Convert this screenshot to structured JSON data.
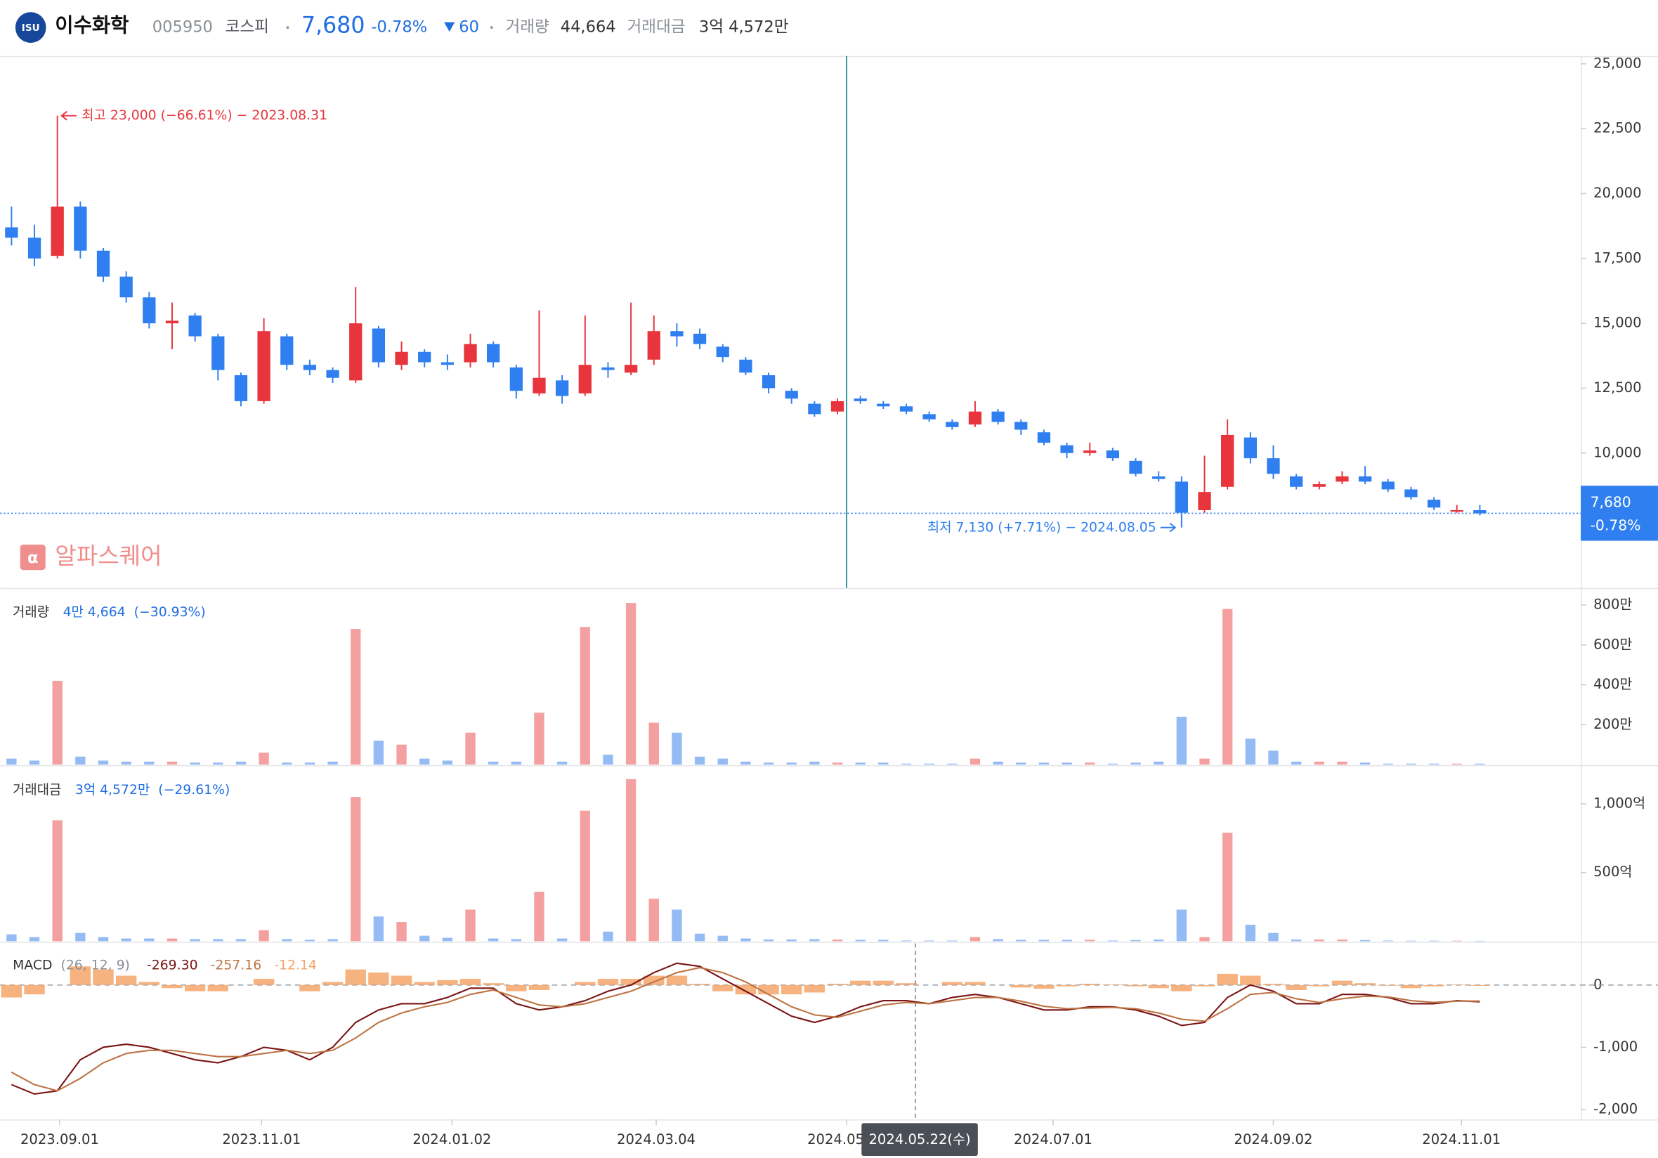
{
  "header": {
    "logo": "ISU",
    "name": "이수화학",
    "code": "005950",
    "market": "코스피",
    "price": "7,680",
    "change_rate": "-0.78%",
    "change": "60",
    "volume_label": "거래량",
    "volume": "44,664",
    "value_label": "거래대금",
    "value": "3억 4,572만"
  },
  "watermark": "알파스퀘어",
  "crosshair": {
    "x": 39.4,
    "label": "2024.05.22(수)"
  },
  "chart_data": [
    {
      "type": "candlestick",
      "up_color": "#e8353d",
      "down_color": "#2f7ff0",
      "xlim": [
        -0.5,
        68.4
      ],
      "xticks": [
        {
          "value": 2.1,
          "label": "2023.09.01"
        },
        {
          "value": 10.9,
          "label": "2023.11.01"
        },
        {
          "value": 19.2,
          "label": "2024.01.02"
        },
        {
          "value": 28.1,
          "label": "2024.03.04"
        },
        {
          "value": 36.4,
          "label": "2024.05.02"
        },
        {
          "value": 45.4,
          "label": "2024.07.01"
        },
        {
          "value": 55.0,
          "label": "2024.09.02"
        },
        {
          "value": 63.2,
          "label": "2024.11.01"
        }
      ],
      "marker_x": 36.4,
      "ylim": [
        4800,
        25300
      ],
      "yticks": [
        {
          "value": 10000,
          "label": "10,000"
        },
        {
          "value": 12500,
          "label": "12,500"
        },
        {
          "value": 15000,
          "label": "15,000"
        },
        {
          "value": 17500,
          "label": "17,500"
        },
        {
          "value": 20000,
          "label": "20,000"
        },
        {
          "value": 22500,
          "label": "22,500"
        },
        {
          "value": 25000,
          "label": "25,000"
        }
      ],
      "open": [
        18700,
        18300,
        17600,
        19500,
        17800,
        16800,
        16000,
        15000,
        15300,
        14500,
        13000,
        12000,
        14500,
        13400,
        13200,
        12800,
        14800,
        13400,
        13900,
        13500,
        13500,
        14200,
        13300,
        12300,
        12800,
        12300,
        13300,
        13100,
        13600,
        14700,
        14600,
        14100,
        13600,
        13000,
        12400,
        11900,
        11600,
        12100,
        11900,
        11800,
        11500,
        11200,
        11100,
        11600,
        11200,
        10800,
        10300,
        10000,
        10100,
        9700,
        9100,
        8900,
        7800,
        8700,
        10600,
        9800,
        9100,
        8700,
        8900,
        9100,
        8900,
        8600,
        8200,
        7800,
        7800
      ],
      "high": [
        19500,
        18800,
        23000,
        19700,
        17900,
        17000,
        16200,
        15800,
        15400,
        14600,
        13100,
        15200,
        14600,
        13600,
        13300,
        16400,
        14900,
        14300,
        14000,
        13800,
        14600,
        14300,
        13400,
        15500,
        13000,
        15300,
        13500,
        15800,
        15300,
        15000,
        14800,
        14200,
        13700,
        13100,
        12500,
        12000,
        12100,
        12200,
        12000,
        11900,
        11600,
        11300,
        12000,
        11700,
        11300,
        10900,
        10400,
        10400,
        10200,
        9800,
        9300,
        9100,
        9900,
        11300,
        10800,
        10300,
        9200,
        8900,
        9300,
        9500,
        9000,
        8700,
        8300,
        8000,
        8000
      ],
      "low": [
        18000,
        17200,
        17500,
        17500,
        16600,
        15800,
        14800,
        14000,
        14300,
        12800,
        11800,
        11900,
        13200,
        13000,
        12700,
        12700,
        13300,
        13200,
        13300,
        13200,
        13300,
        13300,
        12100,
        12200,
        11900,
        12200,
        12900,
        13000,
        13400,
        14100,
        14000,
        13500,
        13000,
        12300,
        11900,
        11400,
        11500,
        11900,
        11700,
        11500,
        11200,
        10900,
        11000,
        11100,
        10700,
        10300,
        9800,
        9900,
        9700,
        9100,
        8900,
        7130,
        7700,
        8600,
        9600,
        9000,
        8600,
        8600,
        8800,
        8800,
        8500,
        8200,
        7800,
        7700,
        7600
      ],
      "close": [
        18300,
        17500,
        19500,
        17800,
        16800,
        16000,
        15000,
        15100,
        14500,
        13200,
        12000,
        14700,
        13400,
        13200,
        12900,
        15000,
        13500,
        13900,
        13500,
        13400,
        14200,
        13500,
        12400,
        12900,
        12200,
        13400,
        13200,
        13400,
        14700,
        14500,
        14200,
        13700,
        13100,
        12500,
        12100,
        11500,
        12000,
        12000,
        11800,
        11600,
        11300,
        11000,
        11600,
        11200,
        10900,
        10400,
        10000,
        10100,
        9800,
        9200,
        9000,
        7700,
        8500,
        10700,
        9800,
        9200,
        8700,
        8800,
        9100,
        8900,
        8600,
        8300,
        7900,
        7800,
        7680
      ],
      "annotations": [
        {
          "index": 2,
          "at": "high",
          "text": "최고 23,000 (−66.61%) − 2023.08.31",
          "color": "#e8353d"
        },
        {
          "index": 51,
          "at": "low",
          "text": "최저 7,130 (+7.71%) − 2024.08.05",
          "color": "#2f7ff0"
        }
      ],
      "last_price": {
        "value": 7680,
        "label": "7,680",
        "change": "-0.78%",
        "color": "#2f7ff0"
      }
    },
    {
      "type": "bar",
      "title": "거래량",
      "legend_value": "4만 4,664",
      "legend_change": "(−30.93%)",
      "up_color": "#f5a0a0",
      "down_color": "#95bbf5",
      "ylim": [
        0,
        880
      ],
      "yticks": [
        {
          "value": 200,
          "label": "200만"
        },
        {
          "value": 400,
          "label": "400만"
        },
        {
          "value": 600,
          "label": "600만"
        },
        {
          "value": 800,
          "label": "800만"
        }
      ],
      "values": [
        30,
        20,
        420,
        40,
        20,
        15,
        15,
        15,
        10,
        10,
        15,
        60,
        10,
        10,
        15,
        680,
        120,
        100,
        30,
        20,
        160,
        15,
        15,
        260,
        15,
        690,
        50,
        810,
        210,
        160,
        40,
        30,
        15,
        10,
        10,
        15,
        10,
        10,
        10,
        5,
        5,
        5,
        30,
        15,
        10,
        10,
        10,
        10,
        5,
        10,
        15,
        240,
        30,
        780,
        130,
        70,
        15,
        15,
        15,
        10,
        5,
        5,
        5,
        5,
        5
      ]
    },
    {
      "type": "bar",
      "title": "거래대금",
      "legend_value": "3억 4,572만",
      "legend_change": "(−29.61%)",
      "up_color": "#f5a0a0",
      "down_color": "#95bbf5",
      "ylim": [
        0,
        1270
      ],
      "yticks": [
        {
          "value": 500,
          "label": "500억"
        },
        {
          "value": 1000,
          "label": "1,000억"
        }
      ],
      "values": [
        50,
        30,
        880,
        60,
        30,
        20,
        20,
        20,
        15,
        15,
        15,
        80,
        15,
        10,
        15,
        1050,
        180,
        140,
        40,
        25,
        230,
        20,
        15,
        360,
        20,
        950,
        70,
        1180,
        310,
        230,
        55,
        40,
        20,
        12,
        12,
        15,
        12,
        10,
        10,
        5,
        5,
        5,
        30,
        15,
        10,
        10,
        10,
        10,
        5,
        8,
        12,
        230,
        30,
        790,
        120,
        60,
        12,
        12,
        12,
        8,
        5,
        4,
        4,
        4,
        3
      ]
    },
    {
      "type": "macd",
      "title": "MACD",
      "params": "(26, 12, 9)",
      "ylim": [
        -2150,
        670
      ],
      "yticks": [
        {
          "value": -2000,
          "label": "-2,000"
        },
        {
          "value": -1000,
          "label": "-1,000"
        },
        0
      ],
      "series": [
        {
          "kind": "line",
          "color": "#7a1414",
          "value_label": "-269.30",
          "values": [
            -1600,
            -1750,
            -1700,
            -1200,
            -1000,
            -950,
            -1000,
            -1100,
            -1200,
            -1250,
            -1150,
            -1000,
            -1050,
            -1200,
            -1000,
            -600,
            -400,
            -300,
            -300,
            -200,
            -50,
            -50,
            -300,
            -400,
            -350,
            -250,
            -100,
            0,
            200,
            350,
            300,
            100,
            -100,
            -300,
            -500,
            -600,
            -500,
            -350,
            -250,
            -250,
            -300,
            -200,
            -150,
            -200,
            -300,
            -400,
            -400,
            -350,
            -350,
            -400,
            -500,
            -650,
            -600,
            -200,
            0,
            -100,
            -300,
            -300,
            -150,
            -150,
            -200,
            -300,
            -300,
            -250,
            -269.3
          ]
        },
        {
          "kind": "line",
          "color": "#bd7444",
          "value_label": "-257.16",
          "values": [
            -1400,
            -1600,
            -1700,
            -1500,
            -1250,
            -1100,
            -1050,
            -1050,
            -1100,
            -1150,
            -1150,
            -1100,
            -1050,
            -1100,
            -1050,
            -850,
            -600,
            -450,
            -350,
            -280,
            -150,
            -80,
            -200,
            -320,
            -350,
            -300,
            -200,
            -100,
            50,
            200,
            280,
            200,
            50,
            -150,
            -350,
            -480,
            -520,
            -420,
            -320,
            -280,
            -300,
            -250,
            -200,
            -200,
            -260,
            -340,
            -380,
            -370,
            -360,
            -380,
            -450,
            -550,
            -580,
            -380,
            -150,
            -120,
            -220,
            -280,
            -220,
            -180,
            -190,
            -250,
            -280,
            -260,
            -257.16
          ]
        },
        {
          "kind": "histogram",
          "color": "#f4a468",
          "value_label": "-12.14",
          "values": [
            -200,
            -150,
            0,
            300,
            250,
            150,
            50,
            -50,
            -100,
            -100,
            0,
            100,
            0,
            -100,
            50,
            250,
            200,
            150,
            50,
            80,
            100,
            30,
            -100,
            -80,
            0,
            50,
            100,
            100,
            150,
            150,
            20,
            -100,
            -150,
            -150,
            -150,
            -120,
            20,
            70,
            70,
            30,
            0,
            50,
            50,
            0,
            -40,
            -60,
            -20,
            20,
            10,
            -20,
            -50,
            -100,
            -20,
            180,
            150,
            20,
            -80,
            -20,
            70,
            30,
            -10,
            -50,
            -20,
            10,
            -12.14
          ]
        }
      ]
    }
  ]
}
